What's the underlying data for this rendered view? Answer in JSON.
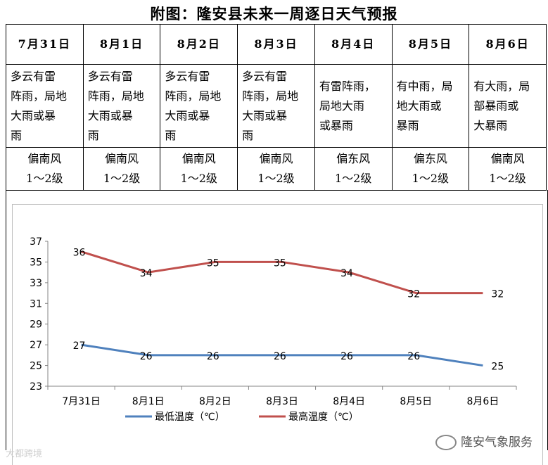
{
  "title": "附图：隆安县未来一周逐日天气预报",
  "days": [
    {
      "date": "7月31日",
      "weather": [
        "多云有雷",
        "阵雨，局地",
        "大雨或暴",
        "雨"
      ],
      "wind": [
        "偏南风",
        "1～2级"
      ]
    },
    {
      "date": "8月1日",
      "weather": [
        "多云有雷",
        "阵雨，局地",
        "大雨或暴",
        "雨"
      ],
      "wind": [
        "偏南风",
        "1～2级"
      ]
    },
    {
      "date": "8月2日",
      "weather": [
        "多云有雷",
        "阵雨，局地",
        "大雨或暴",
        "雨"
      ],
      "wind": [
        "偏南风",
        "1～2级"
      ]
    },
    {
      "date": "8月3日",
      "weather": [
        "多云有雷",
        "阵雨，局地",
        "大雨或暴",
        "雨"
      ],
      "wind": [
        "偏南风",
        "1～2级"
      ]
    },
    {
      "date": "8月4日",
      "weather": [
        "有雷阵雨，",
        "局地大雨",
        "或暴雨"
      ],
      "wind": [
        "偏东风",
        "1～2级"
      ]
    },
    {
      "date": "8月5日",
      "weather": [
        "有中雨，局",
        "地大雨或",
        "暴雨"
      ],
      "wind": [
        "偏东风",
        "1～2级"
      ]
    },
    {
      "date": "8月6日",
      "weather": [
        "有大雨，局",
        "部暴雨或",
        "大暴雨"
      ],
      "wind": [
        "偏南风",
        "1～2级"
      ]
    }
  ],
  "chart_data": {
    "type": "line",
    "categories": [
      "7月31日",
      "8月1日",
      "8月2日",
      "8月3日",
      "8月4日",
      "8月5日",
      "8月6日"
    ],
    "series": [
      {
        "name": "最低温度（℃）",
        "color": "#4f81bd",
        "values": [
          27,
          26,
          26,
          26,
          26,
          26,
          25
        ]
      },
      {
        "name": "最高温度（℃）",
        "color": "#c0504d",
        "values": [
          36,
          34,
          35,
          35,
          34,
          32,
          32
        ]
      }
    ],
    "yticks": [
      23,
      25,
      27,
      29,
      31,
      33,
      35,
      37
    ],
    "ylim": [
      23,
      37
    ],
    "legend": "bottom"
  },
  "watermarks": {
    "left": "大都跨境",
    "right": "隆安气象服务"
  }
}
